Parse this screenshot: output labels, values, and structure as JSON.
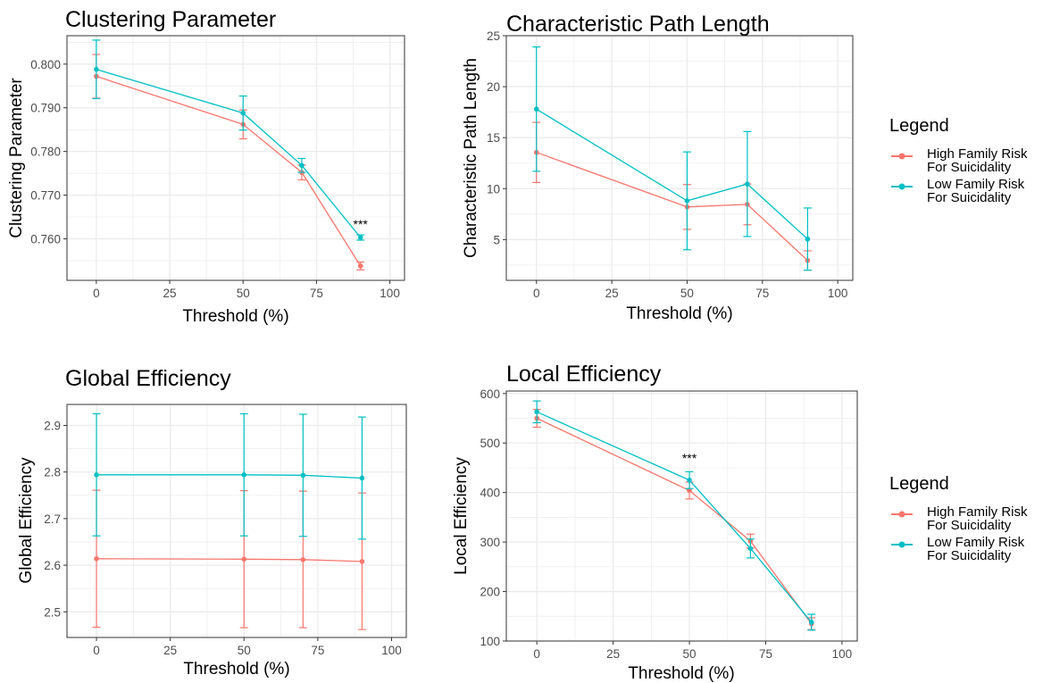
{
  "colors": {
    "high": "#F8766D",
    "low": "#00BFC4",
    "grid": "#EBEBEB",
    "panel_border": "#333333"
  },
  "legend": {
    "title": "Legend",
    "entries": [
      {
        "series": "high",
        "lines": [
          "High Family Risk",
          "For Suicidality"
        ]
      },
      {
        "series": "low",
        "lines": [
          "Low Family Risk",
          "For Suicidality"
        ]
      }
    ]
  },
  "chart_data": [
    {
      "type": "line",
      "title": "Clustering Parameter",
      "xlabel": "Threshold (%)",
      "ylabel": "Clustering Parameter",
      "xlim": [
        -10,
        105
      ],
      "ylim": [
        0.7505,
        0.8065
      ],
      "xticks": [
        0,
        25,
        50,
        75,
        100
      ],
      "yticks": [
        0.76,
        0.77,
        0.78,
        0.79,
        0.8
      ],
      "ytick_labels": [
        "0.760",
        "0.770",
        "0.780",
        "0.790",
        "0.800"
      ],
      "x": [
        0,
        50,
        70,
        90
      ],
      "series": [
        {
          "name": "High Family Risk For Suicidality",
          "key": "high",
          "values": [
            0.7972,
            0.7862,
            0.7752,
            0.7538
          ],
          "err_low": [
            0.7922,
            0.7829,
            0.7735,
            0.7529
          ],
          "err_high": [
            0.8022,
            0.7895,
            0.7769,
            0.7547
          ]
        },
        {
          "name": "Low Family Risk For Suicidality",
          "key": "low",
          "values": [
            0.7988,
            0.7888,
            0.7768,
            0.7603
          ],
          "err_low": [
            0.7921,
            0.7849,
            0.7752,
            0.7597
          ],
          "err_high": [
            0.8055,
            0.7927,
            0.7784,
            0.7609
          ]
        }
      ],
      "annotations": [
        {
          "text": "***",
          "x": 90,
          "y": 0.7624
        }
      ]
    },
    {
      "type": "line",
      "title": "Characteristic Path Length",
      "xlabel": "Threshold (%)",
      "ylabel": "Characteristic Path Length",
      "xlim": [
        -10,
        105
      ],
      "ylim": [
        1,
        25
      ],
      "xticks": [
        0,
        25,
        50,
        75,
        100
      ],
      "yticks": [
        5,
        10,
        15,
        20,
        25
      ],
      "ytick_labels": [
        "5",
        "10",
        "15",
        "20",
        "25"
      ],
      "x": [
        0,
        50,
        70,
        90
      ],
      "series": [
        {
          "name": "High Family Risk For Suicidality",
          "key": "high",
          "values": [
            13.55,
            8.2,
            8.45,
            2.95
          ],
          "err_low": [
            10.6,
            6.0,
            6.45,
            2.0
          ],
          "err_high": [
            16.5,
            10.4,
            10.45,
            3.9
          ]
        },
        {
          "name": "Low Family Risk For Suicidality",
          "key": "low",
          "values": [
            17.8,
            8.8,
            10.45,
            5.05
          ],
          "err_low": [
            11.7,
            4.0,
            5.3,
            2.0
          ],
          "err_high": [
            23.9,
            13.6,
            15.6,
            8.1
          ]
        }
      ],
      "annotations": []
    },
    {
      "type": "line",
      "title": "Global Efficiency",
      "xlabel": "Threshold (%)",
      "ylabel": "Global Efficiency",
      "xlim": [
        -10,
        105
      ],
      "ylim": [
        2.445,
        2.945
      ],
      "xticks": [
        0,
        25,
        50,
        75,
        100
      ],
      "yticks": [
        2.5,
        2.6,
        2.7,
        2.8,
        2.9
      ],
      "ytick_labels": [
        "2.5",
        "2.6",
        "2.7",
        "2.8",
        "2.9"
      ],
      "x": [
        0,
        50,
        70,
        90
      ],
      "series": [
        {
          "name": "High Family Risk For Suicidality",
          "key": "high",
          "values": [
            2.614,
            2.613,
            2.612,
            2.608
          ],
          "err_low": [
            2.467,
            2.466,
            2.466,
            2.462
          ],
          "err_high": [
            2.761,
            2.76,
            2.759,
            2.755
          ]
        },
        {
          "name": "Low Family Risk For Suicidality",
          "key": "low",
          "values": [
            2.794,
            2.794,
            2.793,
            2.787
          ],
          "err_low": [
            2.663,
            2.663,
            2.662,
            2.656
          ],
          "err_high": [
            2.925,
            2.925,
            2.924,
            2.918
          ]
        }
      ],
      "annotations": []
    },
    {
      "type": "line",
      "title": "Local Efficiency",
      "xlabel": "Threshold (%)",
      "ylabel": "Local Efficiency",
      "xlim": [
        -10,
        105
      ],
      "ylim": [
        100,
        605
      ],
      "xticks": [
        0,
        25,
        50,
        75,
        100
      ],
      "yticks": [
        100,
        200,
        300,
        400,
        500,
        600
      ],
      "ytick_labels": [
        "100",
        "200",
        "300",
        "400",
        "500",
        "600"
      ],
      "x": [
        0,
        50,
        70,
        90
      ],
      "series": [
        {
          "name": "High Family Risk For Suicidality",
          "key": "high",
          "values": [
            550,
            404,
            302,
            135
          ],
          "err_low": [
            532,
            387,
            288,
            123
          ],
          "err_high": [
            568,
            421,
            316,
            147
          ]
        },
        {
          "name": "Low Family Risk For Suicidality",
          "key": "low",
          "values": [
            563,
            425,
            287,
            138
          ],
          "err_low": [
            541,
            408,
            268,
            122
          ],
          "err_high": [
            585,
            442,
            306,
            154
          ]
        }
      ],
      "annotations": [
        {
          "text": "***",
          "x": 50,
          "y": 461
        }
      ]
    }
  ]
}
